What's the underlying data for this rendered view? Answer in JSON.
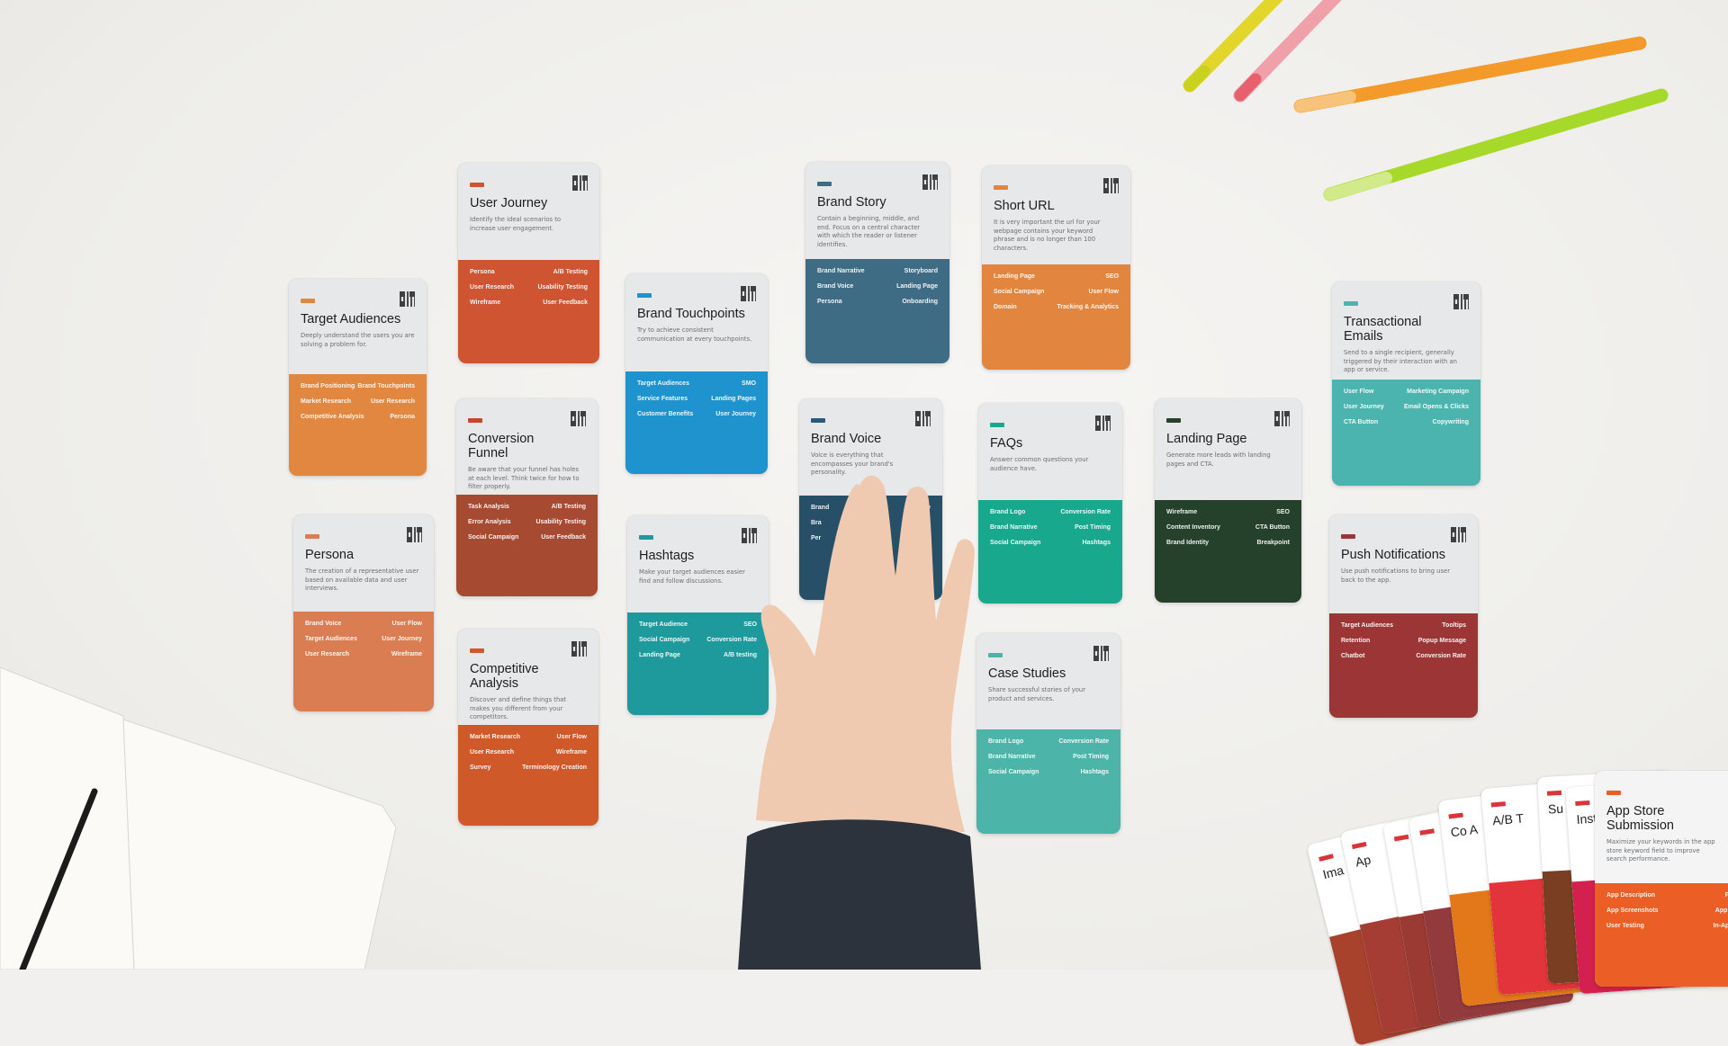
{
  "cards": [
    {
      "title": "Target Audiences",
      "desc": "Deeply understand the users you are solving a problem for.",
      "color": "#e1873f",
      "tag": "#e1873f",
      "items": [
        [
          "Brand Positioning",
          "Brand Touchpoints"
        ],
        [
          "Market Research",
          "User Research"
        ],
        [
          "Competitive Analysis",
          "Persona"
        ]
      ]
    },
    {
      "title": "User Journey",
      "desc": "Identify the ideal scenarios to increase user engagement.",
      "color": "#cf5431",
      "tag": "#cf5431",
      "items": [
        [
          "Persona",
          "A/B Testing"
        ],
        [
          "User Research",
          "Usability Testing"
        ],
        [
          "Wireframe",
          "User Feedback"
        ]
      ]
    },
    {
      "title": "Brand Touchpoints",
      "desc": "Try to achieve consistent communication at every touchpoints.",
      "color": "#1e93cd",
      "tag": "#1e93cd",
      "items": [
        [
          "Target Audiences",
          "SMO"
        ],
        [
          "Service Features",
          "Landing Pages"
        ],
        [
          "Customer Benefits",
          "User Journey"
        ]
      ]
    },
    {
      "title": "Brand Story",
      "desc": "Contain a beginning, middle, and end. Focus on a central character with which the reader or listener identifies.",
      "color": "#3e6c84",
      "tag": "#3e6c84",
      "items": [
        [
          "Brand Narrative",
          "Storyboard"
        ],
        [
          "Brand Voice",
          "Landing Page"
        ],
        [
          "Persona",
          "Onboarding"
        ]
      ]
    },
    {
      "title": "Short URL",
      "desc": "It is very important the url for your webpage contains your keyword phrase and is no longer than 100 characters.",
      "color": "#e2853f",
      "tag": "#e2853f",
      "items": [
        [
          "Landing Page",
          "SEO"
        ],
        [
          "Social Campaign",
          "User Flow"
        ],
        [
          "Domain",
          "Tracking & Analytics"
        ]
      ]
    },
    {
      "title": "Conversion Funnel",
      "desc": "Be aware that your funnel has holes at each level. Think twice for how to filter properly.",
      "color": "#a64a32",
      "tag": "#c0492f",
      "items": [
        [
          "Task Analysis",
          "A/B Testing"
        ],
        [
          "Error Analysis",
          "Usability Testing"
        ],
        [
          "Social Campaign",
          "User Feedback"
        ]
      ]
    },
    {
      "title": "Brand Voice",
      "desc": "Voice is everything that encompasses your brand's personality.",
      "color": "#284f68",
      "tag": "#2c5a78",
      "items": [
        [
          "Brand",
          "ve"
        ],
        [
          "Bra",
          ""
        ],
        [
          "Per",
          ""
        ]
      ]
    },
    {
      "title": "FAQs",
      "desc": "Answer common questions your audience have.",
      "color": "#18a88d",
      "tag": "#18a88d",
      "items": [
        [
          "Brand Logo",
          "Conversion Rate"
        ],
        [
          "Brand Narrative",
          "Post Timing"
        ],
        [
          "Social Campaign",
          "Hashtags"
        ]
      ]
    },
    {
      "title": "Landing Page",
      "desc": "Generate more leads with landing pages and CTA.",
      "color": "#25412b",
      "tag": "#25412b",
      "items": [
        [
          "Wireframe",
          "SEO"
        ],
        [
          "Content Inventory",
          "CTA Button"
        ],
        [
          "Brand Identity",
          "Breakpoint"
        ]
      ]
    },
    {
      "title": "Transactional Emails",
      "desc": "Send to a single recipient, generally triggered by their interaction with an app or service.",
      "color": "#4cb4af",
      "tag": "#4cb4af",
      "items": [
        [
          "User Flow",
          "Marketing Campaign"
        ],
        [
          "User Journey",
          "Email Opens & Clicks"
        ],
        [
          "CTA Button",
          "Copywriting"
        ]
      ]
    },
    {
      "title": "Persona",
      "desc": "The creation of a representative user based on available data and user interviews.",
      "color": "#db7d52",
      "tag": "#db7d52",
      "items": [
        [
          "Brand Voice",
          "User Flow"
        ],
        [
          "Target Audiences",
          "User Journey"
        ],
        [
          "User Research",
          "Wireframe"
        ]
      ]
    },
    {
      "title": "Hashtags",
      "desc": "Make your target audiences easier find and follow discussions.",
      "color": "#1e9a9d",
      "tag": "#1e9a9d",
      "items": [
        [
          "Target Audience",
          "SEO"
        ],
        [
          "Social Campaign",
          "Conversion Rate"
        ],
        [
          "Landing Page",
          "A/B testing"
        ]
      ]
    },
    {
      "title": "Push Notifications",
      "desc": "Use push notifications to bring user back to the app.",
      "color": "#9c3636",
      "tag": "#9c3636",
      "items": [
        [
          "Target Audiences",
          "Tooltips"
        ],
        [
          "Retention",
          "Popup Message"
        ],
        [
          "Chatbot",
          "Conversion Rate"
        ]
      ]
    },
    {
      "title": "Competitive Analysis",
      "desc": "Discover and define things that makes you different from your competitors.",
      "color": "#d0592a",
      "tag": "#d0592a",
      "items": [
        [
          "Market Research",
          "User Flow"
        ],
        [
          "User Research",
          "Wireframe"
        ],
        [
          "Survey",
          "Terminology Creation"
        ]
      ]
    },
    {
      "title": "Case Studies",
      "desc": "Share successful stories of your product and services.",
      "color": "#4cb4a9",
      "tag": "#4cb4a9",
      "items": [
        [
          "Brand Logo",
          "Conversion Rate"
        ],
        [
          "Brand Narrative",
          "Post Timing"
        ],
        [
          "Social Campaign",
          "Hashtags"
        ]
      ]
    }
  ],
  "fan_cards": [
    {
      "title": "Ima",
      "color": "#a8422c"
    },
    {
      "title": "Ap",
      "color": "#a63d35"
    },
    {
      "title": "",
      "color": "#9a3a33"
    },
    {
      "title": "",
      "color": "#933a3c"
    },
    {
      "title": "Co A",
      "color": "#e2781a"
    },
    {
      "title": "A/B T",
      "color": "#e2343a"
    },
    {
      "title": "Su",
      "color": "#7a3f22"
    },
    {
      "title": "Insta",
      "color": "#d3204e"
    }
  ],
  "app_store_card": {
    "title": "App Store Submission",
    "desc": "Maximize your keywords in the app store keyword field to improve search performance.",
    "color": "#eb5f26",
    "items": [
      [
        "App Description",
        "Press Kit"
      ],
      [
        "App Screenshots",
        "App Ratings"
      ],
      [
        "User Testing",
        "In-App Share"
      ]
    ]
  },
  "colors": {
    "background": "#f1f0ee",
    "skin": "#eec6ad",
    "sleeve": "#2c323b"
  }
}
